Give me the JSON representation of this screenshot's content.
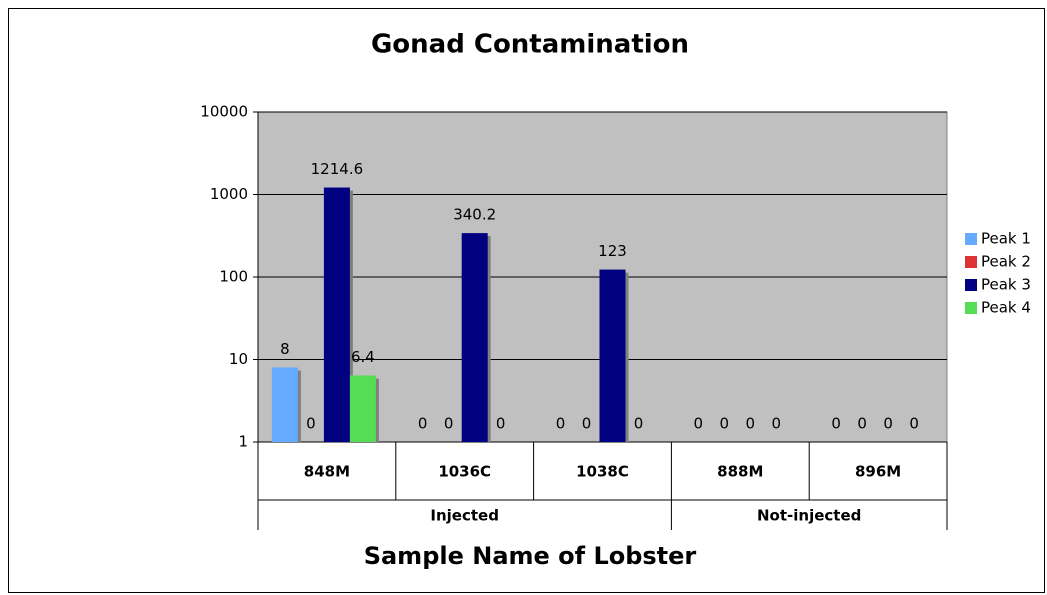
{
  "chart_data": {
    "type": "bar",
    "title": "Gonad Contamination",
    "x_label": "Sample Name of Lobster",
    "categories": [
      "848M",
      "1036C",
      "1038C",
      "888M",
      "896M"
    ],
    "group_labels": [
      "Injected",
      "Injected",
      "Injected",
      "Not-injected",
      "Not-injected"
    ],
    "series": [
      {
        "name": "Peak 1",
        "color": "#66aaff",
        "values": [
          8,
          0,
          0,
          0,
          0
        ]
      },
      {
        "name": "Peak 2",
        "color": "#dd3333",
        "values": [
          0,
          0,
          0,
          0,
          0
        ]
      },
      {
        "name": "Peak 3",
        "color": "#000080",
        "values": [
          1214.6,
          340.2,
          123,
          0,
          0
        ]
      },
      {
        "name": "Peak 4",
        "color": "#55dd55",
        "values": [
          6.4,
          0,
          0,
          0,
          0
        ]
      }
    ],
    "ylim": [
      1,
      10000
    ],
    "yticks": [
      1,
      10,
      100,
      1000,
      10000
    ],
    "log_scale": true,
    "grid": true,
    "legend": "right",
    "plot_background": "#c0c0c0"
  }
}
